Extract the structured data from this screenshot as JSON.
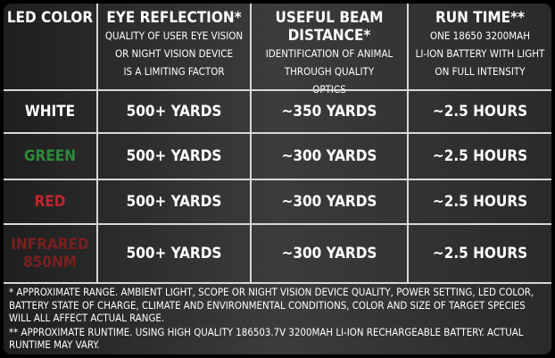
{
  "headers": {
    "led_color": "LED COLOR",
    "eye_reflection_title": "EYE REFLECTION*",
    "eye_reflection_sub1": "QUALITY OF USER EYE VISION",
    "eye_reflection_sub2": "OR NIGHT VISION DEVICE",
    "eye_reflection_sub3": "IS A LIMITING FACTOR",
    "beam_title": "USEFUL BEAM DISTANCE*",
    "beam_sub1": "IDENTIFICATION OF ANIMAL",
    "beam_sub2": "THROUGH QUALITY",
    "beam_sub3": "OPTICS",
    "runtime_title": "RUN TIME**",
    "runtime_sub1": "ONE 18650 3200MAH",
    "runtime_sub2": "LI-ION BATTERY WITH LIGHT",
    "runtime_sub3": "ON FULL INTENSITY"
  },
  "rows": [
    {
      "color": "WHITE",
      "color_line2": "",
      "color_hex": "#ffffff",
      "eye": "500+ YARDS",
      "beam": "~350 YARDS",
      "runtime": "~2.5 HOURS"
    },
    {
      "color": "GREEN",
      "color_line2": "",
      "color_hex": "#2e8b3a",
      "eye": "500+ YARDS",
      "beam": "~300 YARDS",
      "runtime": "~2.5 HOURS"
    },
    {
      "color": "RED",
      "color_line2": "",
      "color_hex": "#c0252a",
      "eye": "500+ YARDS",
      "beam": "~300 YARDS",
      "runtime": "~2.5 HOURS"
    },
    {
      "color": "INFRARED",
      "color_line2": "850NM",
      "color_hex": "#7a1f1f",
      "eye": "500+ YARDS",
      "beam": "~300 YARDS",
      "runtime": "~2.5 HOURS"
    }
  ],
  "footnotes": {
    "note1": "* APPROXIMATE RANGE. AMBIENT LIGHT, SCOPE OR NIGHT VISION DEVICE QUALITY, POWER SETTING, LED COLOR, BATTERY STATE OF CHARGE, CLIMATE AND ENVIRONMENTAL CONDITIONS, COLOR AND SIZE OF TARGET SPECIES WILL ALL AFFECT ACTUAL RANGE.",
    "note2": "** APPROXIMATE RUNTIME. USING HIGH QUALITY 186503.7V 3200MAH LI-ION RECHARGEABLE BATTERY. ACTUAL RUNTIME MAY VARY."
  }
}
